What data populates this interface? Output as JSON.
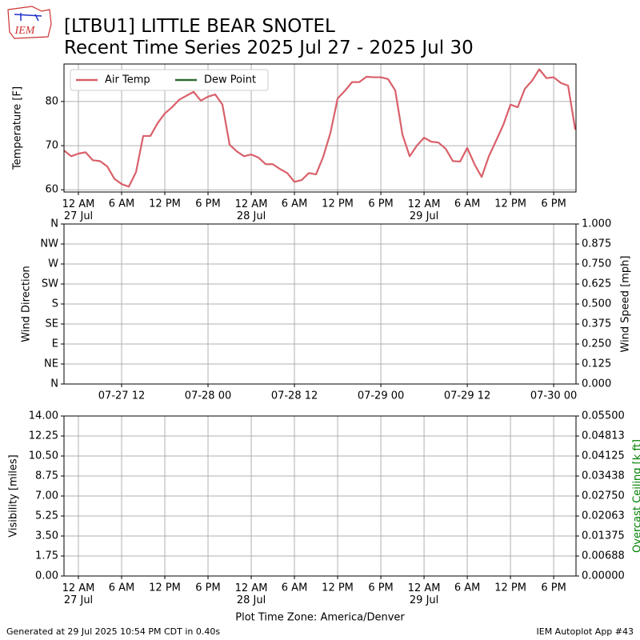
{
  "title": "[LTBU1] LITTLE BEAR SNOTEL",
  "subtitle": "Recent Time Series 2025 Jul 27 - 2025 Jul 30",
  "logo": "IEM",
  "x_label": "Plot Time Zone: America/Denver",
  "footer": {
    "left": "Generated at 29 Jul 2025 10:54 PM CDT in 0.40s",
    "right": "IEM Autoplot App #43"
  },
  "chart_data": [
    {
      "type": "line",
      "ylabel": "Temperature [F]",
      "grid": true,
      "legend": "upper left",
      "xlim": [
        -2,
        69.1
      ],
      "xticks": [
        {
          "value": 0,
          "label": "12 AM\n27 Jul"
        },
        {
          "value": 6,
          "label": "6 AM"
        },
        {
          "value": 12,
          "label": "12 PM"
        },
        {
          "value": 18,
          "label": "6 PM"
        },
        {
          "value": 24,
          "label": "12 AM\n28 Jul"
        },
        {
          "value": 30,
          "label": "6 AM"
        },
        {
          "value": 36,
          "label": "12 PM"
        },
        {
          "value": 42,
          "label": "6 PM"
        },
        {
          "value": 48,
          "label": "12 AM\n29 Jul"
        },
        {
          "value": 54,
          "label": "6 AM"
        },
        {
          "value": 60,
          "label": "12 PM"
        },
        {
          "value": 66,
          "label": "6 PM"
        }
      ],
      "ylim": [
        59.5,
        88.5
      ],
      "yticks": [
        60,
        70,
        80
      ],
      "x": [
        -2,
        -1,
        0,
        1,
        2,
        3,
        4,
        5,
        6,
        7,
        8,
        9,
        10,
        11,
        12,
        13,
        14,
        15,
        16,
        17,
        18,
        19,
        20,
        21,
        22,
        23,
        24,
        25,
        26,
        27,
        28,
        29,
        30,
        31,
        32,
        33,
        34,
        35,
        36,
        37,
        38,
        39,
        40,
        41,
        42,
        43,
        44,
        45,
        46,
        47,
        48,
        49,
        50,
        51,
        52,
        53,
        54,
        55,
        56,
        57,
        58,
        59,
        60,
        61,
        62,
        63,
        64,
        65,
        66,
        67,
        68,
        69
      ],
      "series": [
        {
          "name": "Air Temp",
          "color": "#d9606a",
          "values": [
            68.9,
            67.6,
            68.2,
            68.5,
            66.7,
            66.5,
            65.3,
            62.5,
            61.3,
            60.7,
            64.0,
            72.2,
            72.2,
            75.1,
            77.3,
            78.7,
            80.4,
            81.3,
            82.2,
            80.2,
            81.1,
            81.6,
            79.3,
            70.2,
            68.7,
            67.6,
            68.0,
            67.3,
            65.8,
            65.8,
            64.7,
            63.8,
            61.8,
            62.2,
            63.8,
            63.5,
            67.5,
            72.9,
            80.7,
            82.4,
            84.4,
            84.4,
            85.6,
            85.5,
            85.5,
            85.1,
            82.5,
            72.5,
            67.6,
            70.0,
            71.8,
            70.9,
            70.7,
            69.3,
            66.5,
            66.4,
            69.5,
            65.8,
            62.9,
            67.6,
            71.1,
            74.7,
            79.3,
            78.7,
            82.9,
            84.7,
            87.3,
            85.3,
            85.5,
            84.2,
            83.6,
            73.6
          ]
        },
        {
          "name": "Dew Point",
          "color": "#2f6a34",
          "values": [
            null,
            null,
            null,
            null,
            null,
            null,
            null,
            null,
            null,
            null,
            null,
            null,
            null,
            null,
            null,
            null,
            null,
            null,
            null,
            null,
            null,
            null,
            null,
            null,
            null,
            null,
            null,
            null,
            null,
            null,
            null,
            null,
            null,
            null,
            null,
            null,
            null,
            null,
            null,
            null,
            null,
            null,
            null,
            null,
            null,
            null,
            null,
            null,
            null,
            null,
            null,
            null,
            null,
            null,
            null,
            null,
            null,
            null,
            null,
            null,
            null,
            null,
            null,
            null,
            null,
            null,
            null,
            null,
            null,
            null,
            null,
            null
          ]
        }
      ]
    },
    {
      "type": "line",
      "ylabel": "Wind Direction",
      "y2label": "Wind Speed [mph]",
      "grid": true,
      "xlim": [
        4,
        75.1
      ],
      "xticks": [
        {
          "value": 12,
          "label": "07-27 12"
        },
        {
          "value": 24,
          "label": "07-28 00"
        },
        {
          "value": 36,
          "label": "07-28 12"
        },
        {
          "value": 48,
          "label": "07-29 00"
        },
        {
          "value": 60,
          "label": "07-29 12"
        },
        {
          "value": 72,
          "label": "07-30 00"
        }
      ],
      "ylim": [
        0,
        360
      ],
      "yticks": [
        {
          "value": 0,
          "label": "N"
        },
        {
          "value": 45,
          "label": "NE"
        },
        {
          "value": 90,
          "label": "E"
        },
        {
          "value": 135,
          "label": "SE"
        },
        {
          "value": 180,
          "label": "S"
        },
        {
          "value": 225,
          "label": "SW"
        },
        {
          "value": 270,
          "label": "W"
        },
        {
          "value": 315,
          "label": "NW"
        },
        {
          "value": 360,
          "label": "N"
        }
      ],
      "y2lim": [
        0,
        1
      ],
      "y2ticks": [
        {
          "value": 0,
          "label": "0.000"
        },
        {
          "value": 0.125,
          "label": "0.125"
        },
        {
          "value": 0.25,
          "label": "0.250"
        },
        {
          "value": 0.375,
          "label": "0.375"
        },
        {
          "value": 0.5,
          "label": "0.500"
        },
        {
          "value": 0.625,
          "label": "0.625"
        },
        {
          "value": 0.75,
          "label": "0.750"
        },
        {
          "value": 0.875,
          "label": "0.875"
        },
        {
          "value": 1,
          "label": "1.000"
        }
      ]
    },
    {
      "type": "line",
      "ylabel": "Visibility [miles]",
      "y2label": "Overcast Ceiling [k ft]",
      "y2label_color": "green",
      "grid": true,
      "xlim": [
        -2,
        69.1
      ],
      "xticks": [
        {
          "value": 0,
          "label": "12 AM\n27 Jul"
        },
        {
          "value": 6,
          "label": "6 AM"
        },
        {
          "value": 12,
          "label": "12 PM"
        },
        {
          "value": 18,
          "label": "6 PM"
        },
        {
          "value": 24,
          "label": "12 AM\n28 Jul"
        },
        {
          "value": 30,
          "label": "6 AM"
        },
        {
          "value": 36,
          "label": "12 PM"
        },
        {
          "value": 42,
          "label": "6 PM"
        },
        {
          "value": 48,
          "label": "12 AM\n29 Jul"
        },
        {
          "value": 54,
          "label": "6 AM"
        },
        {
          "value": 60,
          "label": "12 PM"
        },
        {
          "value": 66,
          "label": "6 PM"
        }
      ],
      "ylim": [
        0,
        14
      ],
      "yticks": [
        {
          "value": 0,
          "label": "0.00"
        },
        1.75,
        {
          "value": 3.5,
          "label": "3.50"
        },
        5.25,
        {
          "value": 7,
          "label": "7.00"
        },
        8.75,
        {
          "value": 10.5,
          "label": "10.50"
        },
        12.25,
        {
          "value": 14,
          "label": "14.00"
        }
      ],
      "y2lim": [
        0,
        0.055
      ],
      "y2ticks": [
        {
          "value": 0,
          "label": "0.00000"
        },
        {
          "value": 0.006875,
          "label": "0.00688"
        },
        {
          "value": 0.01375,
          "label": "0.01375"
        },
        {
          "value": 0.020625,
          "label": "0.02063"
        },
        {
          "value": 0.0275,
          "label": "0.02750"
        },
        {
          "value": 0.034375,
          "label": "0.03438"
        },
        {
          "value": 0.04125,
          "label": "0.04125"
        },
        {
          "value": 0.048125,
          "label": "0.04813"
        },
        {
          "value": 0.055,
          "label": "0.05500"
        }
      ]
    }
  ]
}
